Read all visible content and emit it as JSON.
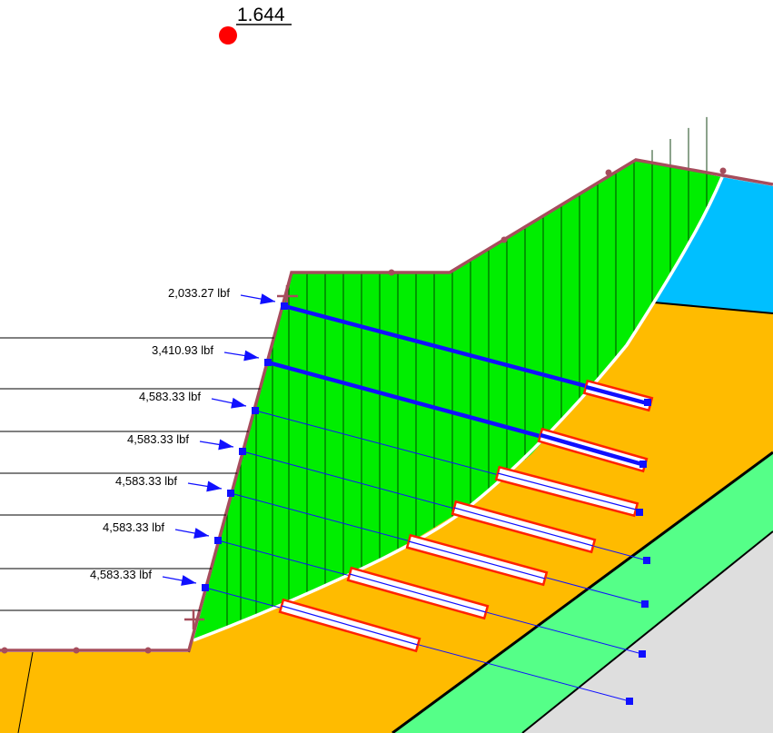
{
  "factor_of_safety": "1.644",
  "colors": {
    "slide_mass": "#00ee00",
    "lower_soil": "#ffbb00",
    "water_zone": "#00bfff",
    "thin_layer": "#55ff88",
    "bedrock": "#dedede",
    "boundary": "#a64d5c",
    "slip_surface": "#ffffff",
    "support": "#1010ff",
    "bond_zone": "#ff2200",
    "center_marker": "#ff0000"
  },
  "supports": [
    {
      "force": "2,033.27 lbf"
    },
    {
      "force": "3,410.93 lbf"
    },
    {
      "force": "4,583.33 lbf"
    },
    {
      "force": "4,583.33 lbf"
    },
    {
      "force": "4,583.33 lbf"
    },
    {
      "force": "4,583.33 lbf"
    },
    {
      "force": "4,583.33 lbf"
    }
  ]
}
